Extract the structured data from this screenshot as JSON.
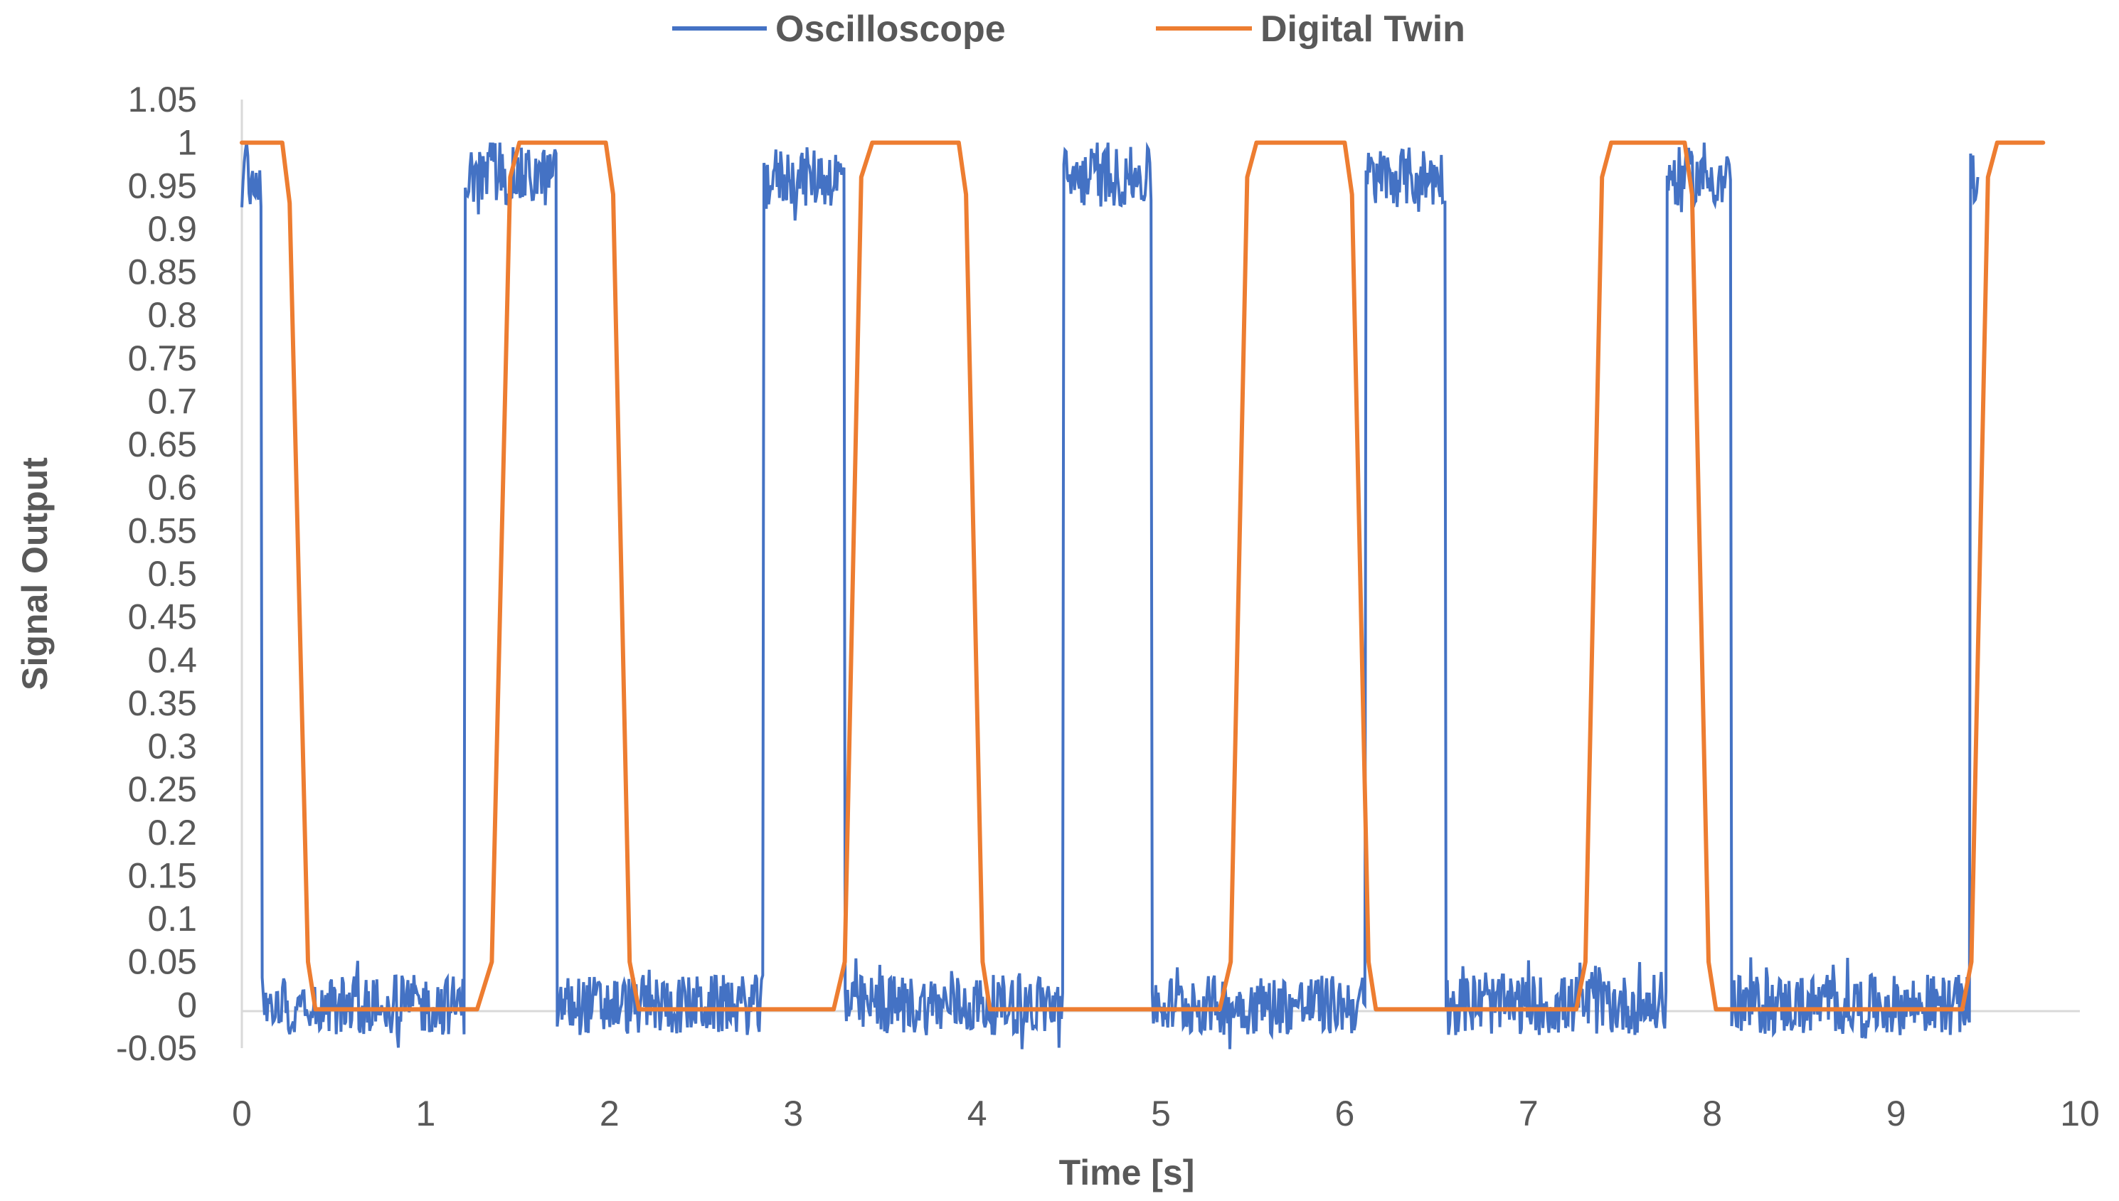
{
  "chart_data": {
    "type": "line",
    "title": "",
    "xlabel": "Time [s]",
    "ylabel": "Signal Output",
    "xlim": [
      0,
      10
    ],
    "ylim": [
      -0.05,
      1.05
    ],
    "x_ticks": [
      "0",
      "1",
      "2",
      "3",
      "4",
      "5",
      "6",
      "7",
      "8",
      "9",
      "10"
    ],
    "y_ticks": [
      "1.05",
      "1",
      "0.95",
      "0.9",
      "0.85",
      "0.8",
      "0.75",
      "0.7",
      "0.65",
      "0.6",
      "0.55",
      "0.5",
      "0.45",
      "0.4",
      "0.35",
      "0.3",
      "0.25",
      "0.2",
      "0.15",
      "0.1",
      "0.05",
      "0",
      "-0.05"
    ],
    "grid": false,
    "legend_position": "top",
    "series": [
      {
        "name": "Oscilloscope",
        "color": "#4472C4",
        "style": "noisy square wave",
        "high_level": 0.96,
        "low_level": 0.0,
        "noise_amplitude": 0.035,
        "x_range": [
          0,
          9.45
        ],
        "high_intervals": [
          [
            0,
            0.11
          ],
          [
            1.21,
            1.71
          ],
          [
            2.84,
            3.28
          ],
          [
            4.47,
            4.95
          ],
          [
            6.11,
            6.55
          ],
          [
            7.75,
            8.1
          ],
          [
            9.4,
            9.45
          ]
        ]
      },
      {
        "name": "Digital Twin",
        "color": "#ED7D31",
        "style": "smooth square wave",
        "high_level": 1.0,
        "low_level": 0.0,
        "x_range": [
          0,
          9.8
        ],
        "points": [
          [
            0.0,
            1.0
          ],
          [
            0.22,
            1.0
          ],
          [
            0.26,
            0.93
          ],
          [
            0.36,
            0.05
          ],
          [
            0.4,
            -0.005
          ],
          [
            1.28,
            -0.005
          ],
          [
            1.36,
            0.05
          ],
          [
            1.46,
            0.96
          ],
          [
            1.51,
            1.0
          ],
          [
            1.98,
            1.0
          ],
          [
            2.02,
            0.94
          ],
          [
            2.11,
            0.05
          ],
          [
            2.16,
            -0.005
          ],
          [
            3.22,
            -0.005
          ],
          [
            3.28,
            0.05
          ],
          [
            3.37,
            0.96
          ],
          [
            3.43,
            1.0
          ],
          [
            3.9,
            1.0
          ],
          [
            3.94,
            0.94
          ],
          [
            4.03,
            0.05
          ],
          [
            4.07,
            -0.005
          ],
          [
            5.32,
            -0.005
          ],
          [
            5.38,
            0.05
          ],
          [
            5.47,
            0.96
          ],
          [
            5.52,
            1.0
          ],
          [
            6.0,
            1.0
          ],
          [
            6.04,
            0.94
          ],
          [
            6.13,
            0.05
          ],
          [
            6.17,
            -0.005
          ],
          [
            7.26,
            -0.005
          ],
          [
            7.31,
            0.05
          ],
          [
            7.4,
            0.96
          ],
          [
            7.45,
            1.0
          ],
          [
            7.85,
            1.0
          ],
          [
            7.89,
            0.94
          ],
          [
            7.98,
            0.05
          ],
          [
            8.02,
            -0.005
          ],
          [
            9.36,
            -0.005
          ],
          [
            9.41,
            0.05
          ],
          [
            9.5,
            0.96
          ],
          [
            9.55,
            1.0
          ],
          [
            9.8,
            1.0
          ]
        ]
      }
    ]
  }
}
